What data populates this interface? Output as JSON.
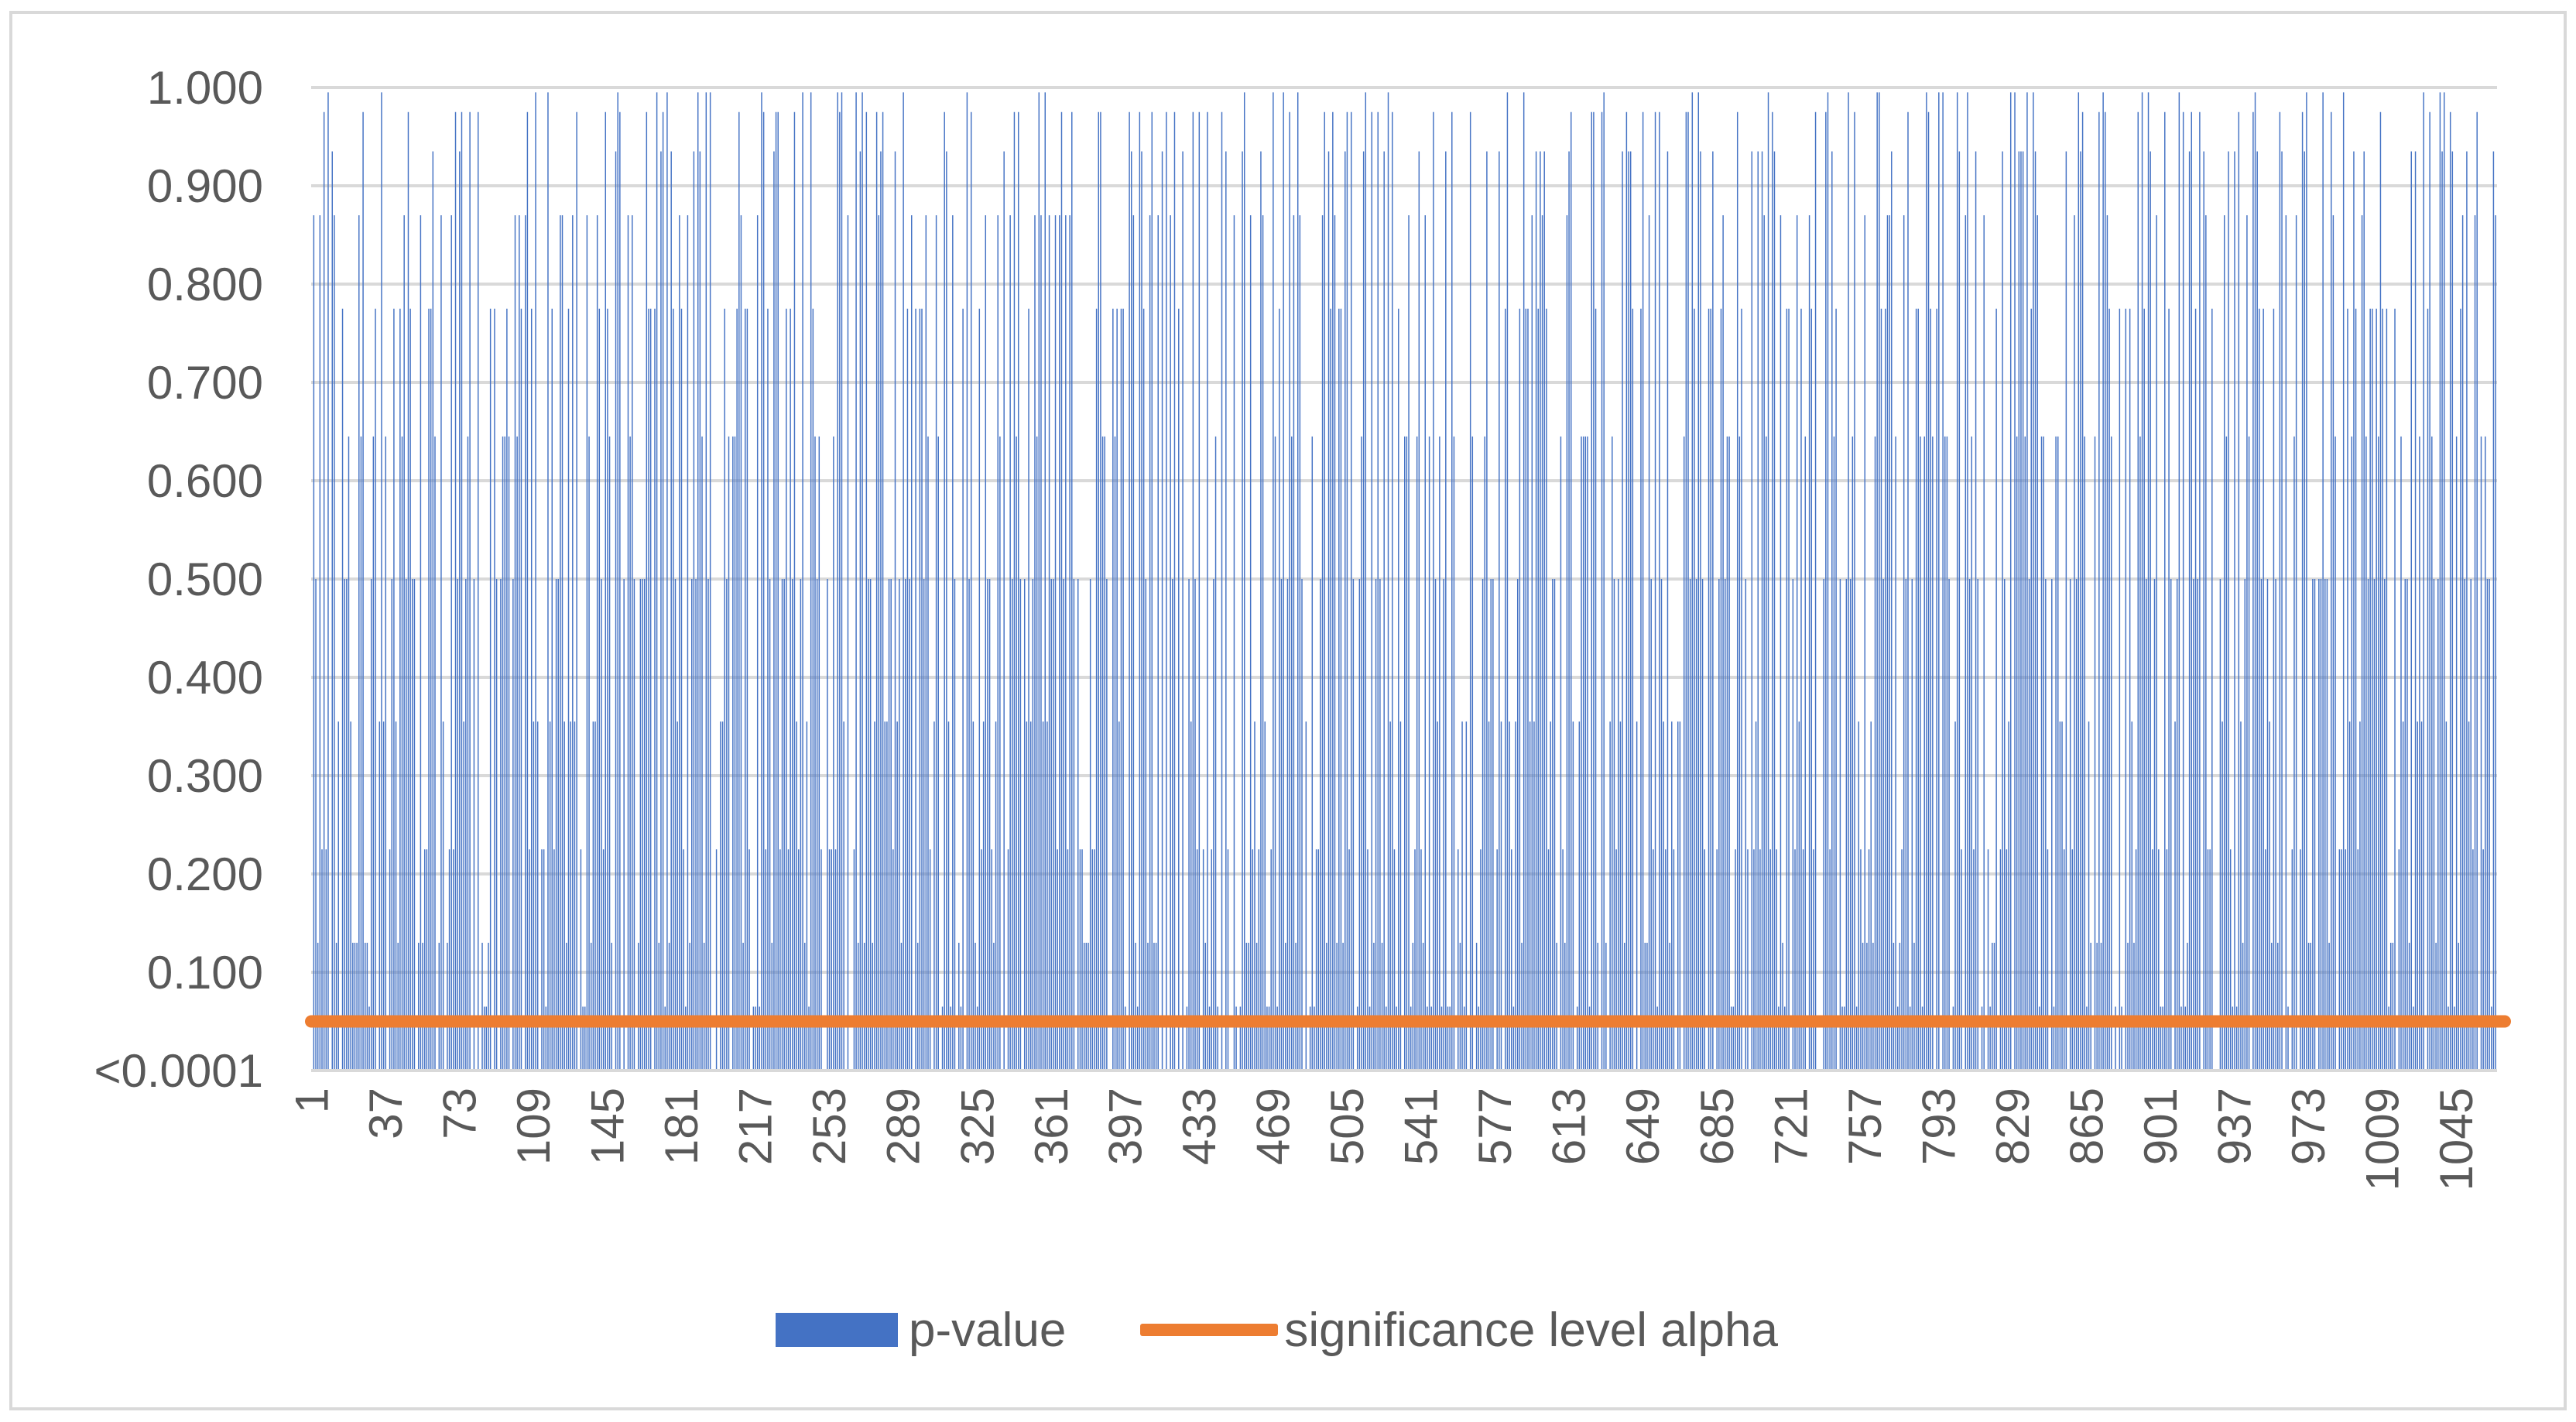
{
  "chart_data": {
    "type": "bar",
    "title": "",
    "xlabel": "",
    "ylabel": "",
    "n_points": 1064,
    "ylim": [
      0,
      1
    ],
    "y_ticks": [
      "<0.0001",
      "0.100",
      "0.200",
      "0.300",
      "0.400",
      "0.500",
      "0.600",
      "0.700",
      "0.800",
      "0.900",
      "1.000"
    ],
    "x_tick_labels": [
      "1",
      "37",
      "73",
      "109",
      "145",
      "181",
      "217",
      "253",
      "289",
      "325",
      "361",
      "397",
      "433",
      "469",
      "505",
      "541",
      "577",
      "613",
      "649",
      "685",
      "721",
      "757",
      "793",
      "829",
      "865",
      "901",
      "937",
      "973",
      "1009",
      "1045"
    ],
    "x_tick_step": 36,
    "grid": true,
    "legend_position": "bottom",
    "value_levels": [
      0.0001,
      0.065,
      0.13,
      0.225,
      0.355,
      0.5,
      0.645,
      0.775,
      0.87,
      0.935,
      0.975,
      0.995
    ],
    "series": [
      {
        "name": "p-value",
        "kind": "bar",
        "color": "#4472C4",
        "values_note": "p-value per test index 1–1064, fluctuating between <0.0001 and 1.000"
      },
      {
        "name": "significance level alpha",
        "kind": "line",
        "color": "#ED7D31",
        "value": 0.05
      }
    ]
  },
  "legend": {
    "items": [
      {
        "label": "p-value",
        "color": "#4472C4"
      },
      {
        "label": "significance level alpha",
        "color": "#ED7D31"
      }
    ]
  }
}
